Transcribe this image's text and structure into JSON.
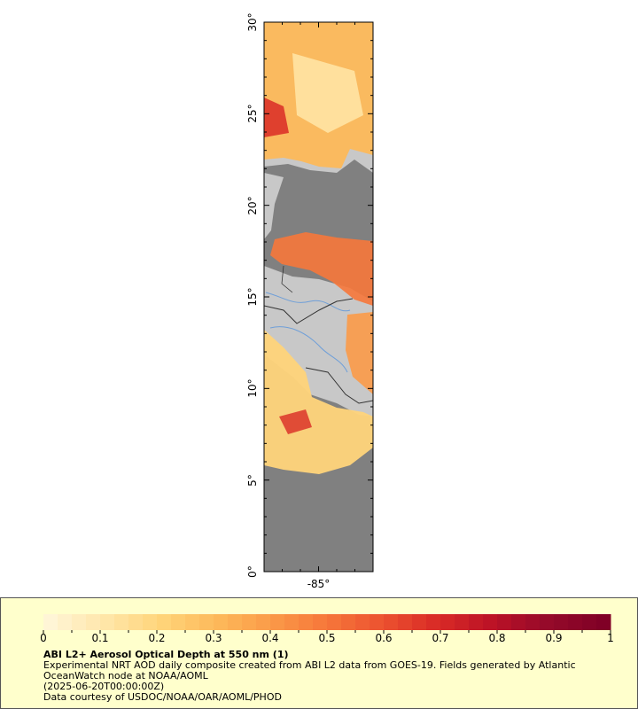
{
  "map": {
    "y_ticks": [
      {
        "value": 30,
        "label": "30°"
      },
      {
        "value": 25,
        "label": "25°"
      },
      {
        "value": 20,
        "label": "20°"
      },
      {
        "value": 15,
        "label": "15°"
      },
      {
        "value": 10,
        "label": "10°"
      },
      {
        "value": 5,
        "label": "5°"
      },
      {
        "value": 0,
        "label": "0°"
      }
    ],
    "x_ticks": [
      {
        "value": -85,
        "label": "-85°"
      }
    ],
    "colors": {
      "land": "#c8c8c8",
      "ocean": "#808080",
      "rivers": "#6f9fd8",
      "borders": "#333333"
    }
  },
  "legend": {
    "title": "ABI L2+ Aerosol Optical Depth at 550 nm (1)",
    "description": "Experimental NRT AOD daily composite created from ABI L2 data from GOES-19. Fields generated by Atlantic OceanWatch node at NOAA/AOML",
    "date": "(2025-06-20T00:00:00Z)",
    "credit": "Data courtesy of USDOC/NOAA/OAR/AOML/PHOD",
    "colorbar": {
      "min": 0,
      "max": 1,
      "labels": [
        "0",
        "0.1",
        "0.2",
        "0.3",
        "0.4",
        "0.5",
        "0.6",
        "0.7",
        "0.8",
        "0.9",
        "1"
      ],
      "colors": [
        "#fff5d6",
        "#ffe6a8",
        "#ffd47a",
        "#fdb95a",
        "#fb9a48",
        "#f6773a",
        "#ec5230",
        "#d92a26",
        "#bb1226",
        "#950a2a",
        "#800026"
      ]
    }
  }
}
